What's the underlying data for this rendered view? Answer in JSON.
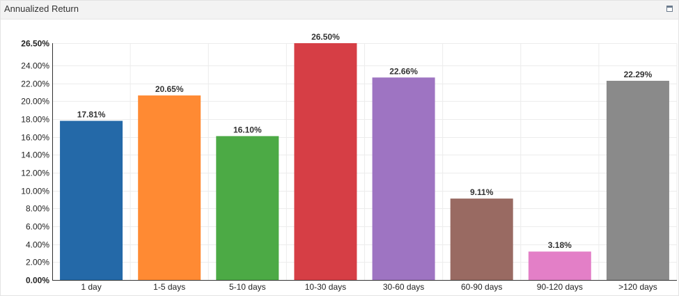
{
  "panel": {
    "title": "Annualized Return",
    "maximize_icon": "maximize-icon"
  },
  "chart_data": {
    "type": "bar",
    "title": "",
    "xlabel": "",
    "ylabel": "",
    "categories": [
      "1 day",
      "1-5 days",
      "5-10 days",
      "10-30 days",
      "30-60 days",
      "60-90 days",
      "90-120 days",
      ">120 days"
    ],
    "values": [
      17.81,
      20.65,
      16.1,
      26.5,
      22.66,
      9.11,
      3.18,
      22.29
    ],
    "value_labels": [
      "17.81%",
      "20.65%",
      "16.10%",
      "26.50%",
      "22.66%",
      "9.11%",
      "3.18%",
      "22.29%"
    ],
    "colors": [
      "#2469a8",
      "#ff8a33",
      "#4caa45",
      "#d63e45",
      "#9e74c2",
      "#996a62",
      "#e37fc7",
      "#8a8a8a"
    ],
    "ylim": [
      0,
      26.5
    ],
    "y_ticks": [
      0,
      2,
      4,
      6,
      8,
      10,
      12,
      14,
      16,
      18,
      20,
      22,
      24,
      26.5
    ],
    "y_tick_labels": [
      "0.00%",
      "2.00%",
      "4.00%",
      "6.00%",
      "8.00%",
      "10.00%",
      "12.00%",
      "14.00%",
      "16.00%",
      "18.00%",
      "20.00%",
      "22.00%",
      "24.00%",
      "26.50%"
    ],
    "bold_ticks": [
      0,
      26.5
    ],
    "grid": true
  }
}
